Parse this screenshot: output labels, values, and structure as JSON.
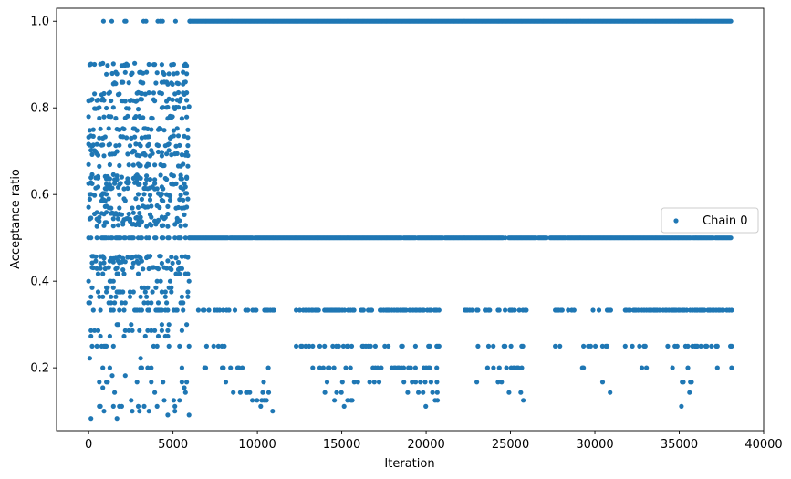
{
  "chart_data": {
    "type": "scatter",
    "xlabel": "Iteration",
    "ylabel": "Acceptance ratio",
    "xlim": [
      -1900,
      40000
    ],
    "ylim": [
      0.055,
      1.03
    ],
    "xticks": [
      0,
      5000,
      10000,
      15000,
      20000,
      25000,
      30000,
      35000,
      40000
    ],
    "xtick_labels": [
      "0",
      "5000",
      "10000",
      "15000",
      "20000",
      "25000",
      "30000",
      "35000",
      "40000"
    ],
    "yticks": [
      0.2,
      0.4,
      0.6,
      0.8,
      1.0
    ],
    "ytick_labels": [
      "0.2",
      "0.4",
      "0.6",
      "0.8",
      "1.0"
    ],
    "grid": false,
    "legend": {
      "placement": "center-right",
      "entries": [
        "Chain 0"
      ]
    },
    "colors": {
      "series": "#1f77b4",
      "axis": "#000000"
    },
    "series": [
      {
        "name": "Chain 0",
        "max_iteration": 38100,
        "bands": [
          {
            "y": 1.0,
            "segments": [
              [
                0,
                600,
                0.02
              ],
              [
                600,
                6000,
                0.2
              ],
              [
                6000,
                38100,
                1.0
              ]
            ]
          },
          {
            "y": 0.5,
            "segments": [
              [
                0,
                6000,
                0.5
              ],
              [
                6000,
                38100,
                0.95
              ]
            ]
          },
          {
            "y": 0.333,
            "segments": [
              [
                0,
                6000,
                0.15
              ],
              [
                6500,
                11000,
                0.3
              ],
              [
                12300,
                21000,
                0.5
              ],
              [
                22300,
                26000,
                0.5
              ],
              [
                27300,
                31000,
                0.35
              ],
              [
                31800,
                38100,
                0.5
              ]
            ]
          },
          {
            "y": 0.25,
            "segments": [
              [
                0,
                6000,
                0.08
              ],
              [
                6500,
                11000,
                0.1
              ],
              [
                12300,
                21000,
                0.25
              ],
              [
                22300,
                26000,
                0.2
              ],
              [
                27300,
                31000,
                0.15
              ],
              [
                31800,
                38100,
                0.2
              ]
            ]
          },
          {
            "y": 0.2,
            "segments": [
              [
                0,
                6000,
                0.05
              ],
              [
                6800,
                11000,
                0.1
              ],
              [
                13000,
                21000,
                0.2
              ],
              [
                22800,
                26000,
                0.15
              ],
              [
                28000,
                31000,
                0.1
              ],
              [
                32500,
                38100,
                0.12
              ]
            ]
          },
          {
            "y": 0.167,
            "segments": [
              [
                0,
                6000,
                0.04
              ],
              [
                7500,
                11000,
                0.08
              ],
              [
                13500,
                21000,
                0.15
              ],
              [
                23000,
                26000,
                0.1
              ],
              [
                28500,
                31000,
                0.07
              ],
              [
                33000,
                36000,
                0.1
              ]
            ]
          },
          {
            "y": 0.143,
            "segments": [
              [
                8500,
                11000,
                0.08
              ],
              [
                14000,
                16000,
                0.1
              ],
              [
                18000,
                21000,
                0.15
              ],
              [
                24000,
                26000,
                0.08
              ],
              [
                29500,
                31000,
                0.05
              ],
              [
                34000,
                36000,
                0.08
              ]
            ]
          },
          {
            "y": 0.125,
            "segments": [
              [
                9000,
                11000,
                0.06
              ],
              [
                14500,
                16000,
                0.06
              ],
              [
                18500,
                21000,
                0.1
              ],
              [
                24500,
                26000,
                0.05
              ],
              [
                30000,
                31000,
                0.04
              ],
              [
                34000,
                36000,
                0.05
              ]
            ]
          },
          {
            "y": 0.111,
            "segments": [
              [
                9500,
                11000,
                0.04
              ],
              [
                15000,
                16000,
                0.04
              ],
              [
                19000,
                21000,
                0.08
              ],
              [
                25000,
                26000,
                0.03
              ],
              [
                34500,
                36000,
                0.04
              ]
            ]
          },
          {
            "y": 0.1,
            "segments": [
              [
                9500,
                11000,
                0.03
              ],
              [
                19000,
                21000,
                0.05
              ],
              [
                25000,
                26000,
                0.02
              ],
              [
                35000,
                36000,
                0.02
              ]
            ]
          },
          {
            "y": 0.091,
            "segments": [
              [
                19500,
                21000,
                0.04
              ]
            ]
          },
          {
            "y": 0.083,
            "segments": [
              [
                20000,
                21000,
                0.02
              ]
            ]
          }
        ],
        "early_phase": {
          "x_range": [
            0,
            6000
          ],
          "dense_levels": [
            0.9,
            0.88,
            0.857,
            0.833,
            0.818,
            0.8,
            0.778,
            0.75,
            0.733,
            0.714,
            0.7,
            0.692,
            0.667,
            0.643,
            0.636,
            0.625,
            0.615,
            0.6,
            0.588,
            0.571,
            0.556,
            0.545,
            0.538,
            0.529,
            0.455,
            0.444,
            0.429
          ],
          "sparse_levels": [
            0.417,
            0.4,
            0.385,
            0.375,
            0.364,
            0.35,
            0.333,
            0.3,
            0.286,
            0.273,
            0.25,
            0.222,
            0.2,
            0.182,
            0.167,
            0.154,
            0.143,
            0.125,
            0.111,
            0.1,
            0.091,
            0.083
          ]
        }
      }
    ]
  }
}
